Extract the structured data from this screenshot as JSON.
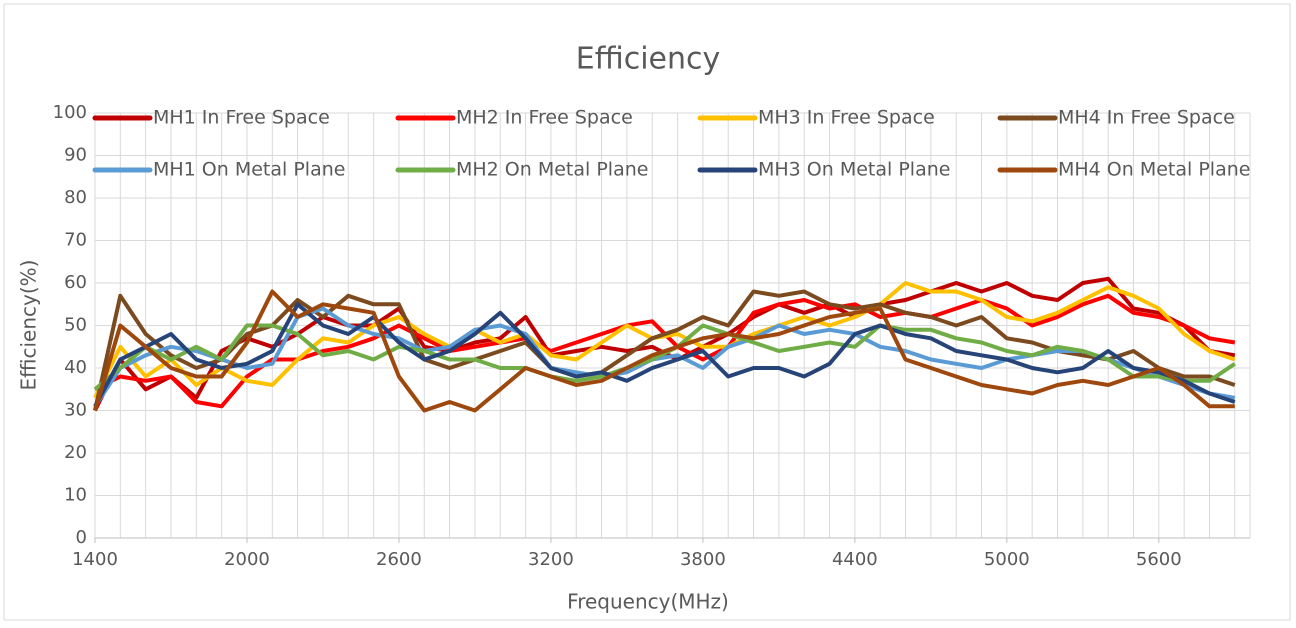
{
  "chart_data": {
    "type": "line",
    "title": "Efficiency",
    "xlabel": "Frequency(MHz)",
    "ylabel": "Efficiency(%)",
    "x": [
      1400,
      1500,
      1600,
      1700,
      1800,
      1900,
      2000,
      2100,
      2200,
      2300,
      2400,
      2500,
      2600,
      2700,
      2800,
      2900,
      3000,
      3100,
      3200,
      3300,
      3400,
      3500,
      3600,
      3700,
      3800,
      3900,
      4000,
      4100,
      4200,
      4300,
      4400,
      4500,
      4600,
      4700,
      4800,
      4900,
      5000,
      5100,
      5200,
      5300,
      5400,
      5500,
      5600,
      5700,
      5800,
      5900
    ],
    "xlim": [
      1400,
      5960
    ],
    "xticks": [
      1400,
      2000,
      2600,
      3200,
      3800,
      4400,
      5000,
      5600
    ],
    "ylim": [
      0,
      100
    ],
    "yticks": [
      0,
      10,
      20,
      30,
      40,
      50,
      60,
      70,
      80,
      90,
      100
    ],
    "grid": true,
    "legend": "top",
    "series": [
      {
        "name": "MH1 In Free Space",
        "color": "#C00000",
        "values": [
          30,
          42,
          35,
          38,
          33,
          44,
          47,
          45,
          48,
          52,
          50,
          50,
          54,
          45,
          44,
          46,
          47,
          52,
          43,
          44,
          45,
          44,
          45,
          42,
          45,
          48,
          52,
          55,
          53,
          55,
          52,
          55,
          56,
          58,
          60,
          58,
          60,
          57,
          56,
          60,
          61,
          54,
          53,
          50,
          44,
          43
        ]
      },
      {
        "name": "MH2 In Free Space",
        "color": "#FF0000",
        "values": [
          35,
          38,
          37,
          38,
          32,
          31,
          38,
          42,
          42,
          44,
          45,
          47,
          50,
          47,
          44,
          45,
          46,
          47,
          44,
          46,
          48,
          50,
          51,
          45,
          42,
          45,
          53,
          55,
          56,
          54,
          55,
          52,
          53,
          52,
          54,
          56,
          54,
          50,
          52,
          55,
          57,
          53,
          52,
          50,
          47,
          46
        ]
      },
      {
        "name": "MH3 In Free Space",
        "color": "#FFC000",
        "values": [
          33,
          45,
          38,
          42,
          36,
          40,
          37,
          36,
          42,
          47,
          46,
          50,
          52,
          48,
          45,
          49,
          46,
          48,
          43,
          42,
          46,
          50,
          47,
          48,
          45,
          45,
          48,
          50,
          52,
          50,
          52,
          55,
          60,
          58,
          58,
          56,
          52,
          51,
          53,
          56,
          59,
          57,
          54,
          48,
          44,
          42
        ]
      },
      {
        "name": "MH4 In Free Space",
        "color": "#7B4A1F",
        "values": [
          30,
          57,
          48,
          43,
          40,
          42,
          48,
          50,
          56,
          52,
          57,
          55,
          55,
          42,
          40,
          42,
          44,
          46,
          40,
          38,
          39,
          43,
          47,
          49,
          52,
          50,
          58,
          57,
          58,
          55,
          54,
          55,
          53,
          52,
          50,
          52,
          47,
          46,
          44,
          43,
          42,
          44,
          40,
          38,
          38,
          36
        ]
      },
      {
        "name": "MH1 On Metal Plane",
        "color": "#5B9BD5",
        "values": [
          31,
          40,
          43,
          45,
          44,
          42,
          40,
          41,
          52,
          54,
          50,
          48,
          47,
          44,
          45,
          49,
          50,
          48,
          40,
          39,
          38,
          39,
          42,
          43,
          40,
          45,
          47,
          50,
          48,
          49,
          48,
          45,
          44,
          42,
          41,
          40,
          42,
          43,
          44,
          44,
          42,
          40,
          38,
          36,
          34,
          33
        ]
      },
      {
        "name": "MH2 On Metal Plane",
        "color": "#70AD47",
        "values": [
          35,
          40,
          45,
          42,
          45,
          42,
          50,
          50,
          48,
          43,
          44,
          42,
          45,
          44,
          42,
          42,
          40,
          40,
          38,
          37,
          38,
          40,
          42,
          45,
          50,
          48,
          46,
          44,
          45,
          46,
          45,
          50,
          49,
          49,
          47,
          46,
          44,
          43,
          45,
          44,
          42,
          38,
          38,
          37,
          37,
          41
        ]
      },
      {
        "name": "MH3 On Metal Plane",
        "color": "#264478",
        "values": [
          31,
          42,
          45,
          48,
          42,
          40,
          41,
          44,
          55,
          50,
          48,
          52,
          46,
          42,
          44,
          48,
          53,
          47,
          40,
          38,
          39,
          37,
          40,
          42,
          44,
          38,
          40,
          40,
          38,
          41,
          48,
          50,
          48,
          47,
          44,
          43,
          42,
          40,
          39,
          40,
          44,
          40,
          39,
          37,
          34,
          32
        ]
      },
      {
        "name": "MH4 On Metal Plane",
        "color": "#9E480E",
        "values": [
          30,
          50,
          45,
          40,
          38,
          38,
          46,
          58,
          52,
          55,
          54,
          53,
          38,
          30,
          32,
          30,
          35,
          40,
          38,
          36,
          37,
          40,
          43,
          45,
          47,
          48,
          47,
          48,
          50,
          52,
          53,
          54,
          42,
          40,
          38,
          36,
          35,
          34,
          36,
          37,
          36,
          38,
          40,
          36,
          31,
          31
        ]
      }
    ]
  }
}
